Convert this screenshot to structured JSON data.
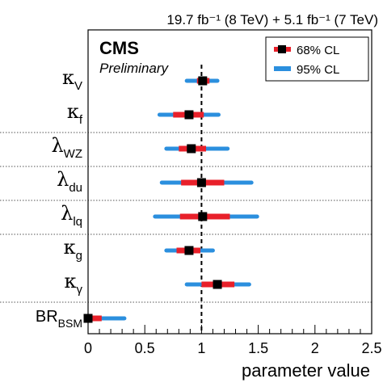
{
  "chart_data": {
    "type": "scatter",
    "header_right": "19.7 fb⁻¹ (8 TeV) + 5.1 fb⁻¹ (7 TeV)",
    "experiment_label": "CMS",
    "status_label": "Preliminary",
    "xlabel": "parameter value",
    "xlim": [
      0,
      2.5
    ],
    "xticks": [
      "0",
      "0.5",
      "1",
      "1.5",
      "2",
      "2.5"
    ],
    "reference_line_x": 1,
    "legend": {
      "placement": "top-right",
      "entries": [
        {
          "label": "68% CL",
          "color": "#e8202a"
        },
        {
          "label": "95% CL",
          "color": "#2b8fde"
        }
      ]
    },
    "colors": {
      "cl68": "#e8202a",
      "cl95": "#2b8fde",
      "marker": "#000000",
      "divider": "#555555"
    },
    "parameters": [
      {
        "symbol": "κ",
        "subscript": "V",
        "value": 1.01,
        "cl68": [
          0.96,
          1.07
        ],
        "cl95": [
          0.87,
          1.14
        ],
        "dividerAbove": false
      },
      {
        "symbol": "κ",
        "subscript": "f",
        "value": 0.89,
        "cl68": [
          0.75,
          1.02
        ],
        "cl95": [
          0.63,
          1.15
        ],
        "dividerAbove": false
      },
      {
        "symbol": "λ",
        "subscript": "WZ",
        "value": 0.91,
        "cl68": [
          0.8,
          1.04
        ],
        "cl95": [
          0.69,
          1.23
        ],
        "dividerAbove": true
      },
      {
        "symbol": "λ",
        "subscript": "du",
        "value": 1.0,
        "cl68": [
          0.82,
          1.2
        ],
        "cl95": [
          0.65,
          1.44
        ],
        "dividerAbove": true
      },
      {
        "symbol": "λ",
        "subscript": "lq",
        "value": 1.01,
        "cl68": [
          0.81,
          1.25
        ],
        "cl95": [
          0.59,
          1.49
        ],
        "dividerAbove": true
      },
      {
        "symbol": "κ",
        "subscript": "g",
        "value": 0.89,
        "cl68": [
          0.78,
          0.99
        ],
        "cl95": [
          0.69,
          1.1
        ],
        "dividerAbove": true
      },
      {
        "symbol": "κ",
        "subscript": "γ",
        "value": 1.14,
        "cl68": [
          1.0,
          1.29
        ],
        "cl95": [
          0.87,
          1.42
        ],
        "dividerAbove": false
      },
      {
        "symbol": "BR",
        "subscript": "BSM",
        "value": 0.0,
        "cl68": [
          0.0,
          0.12
        ],
        "cl95": [
          0.0,
          0.32
        ],
        "dividerAbove": true
      }
    ]
  }
}
